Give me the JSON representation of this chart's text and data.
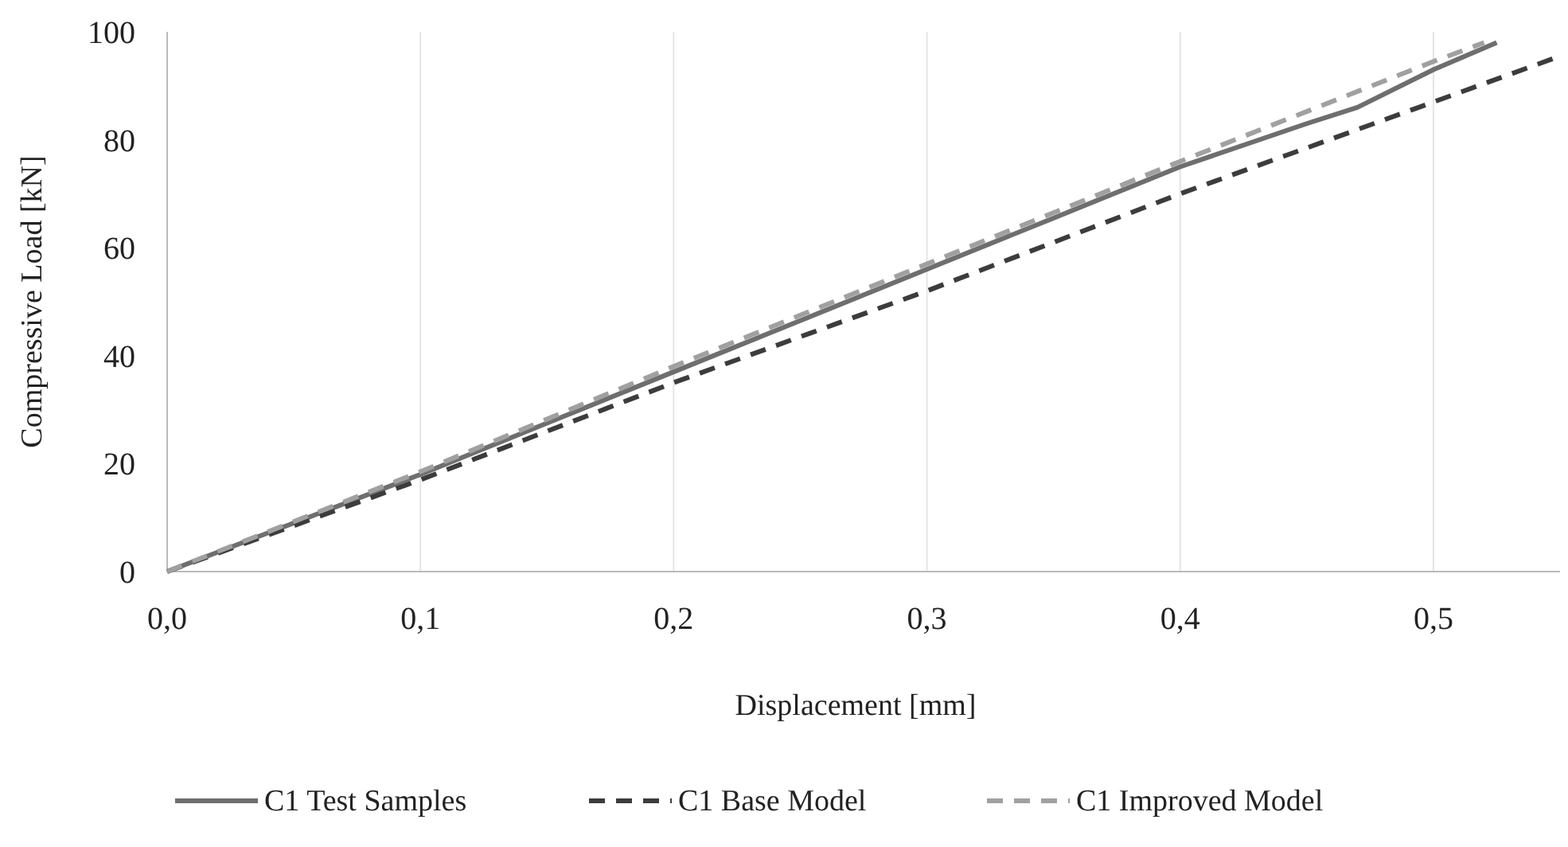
{
  "chart_data": {
    "type": "line",
    "xlabel": "Displacement [mm]",
    "ylabel": "Compressive Load [kN]",
    "xlim": [
      0,
      0.55
    ],
    "ylim": [
      0,
      100
    ],
    "xticks": [
      {
        "value": 0,
        "label": "0,0"
      },
      {
        "value": 0.1,
        "label": "0,1"
      },
      {
        "value": 0.2,
        "label": "0,2"
      },
      {
        "value": 0.3,
        "label": "0,3"
      },
      {
        "value": 0.4,
        "label": "0,4"
      },
      {
        "value": 0.5,
        "label": "0,5"
      }
    ],
    "yticks": [
      0,
      20,
      40,
      60,
      80,
      100
    ],
    "grid": "x",
    "legend": "bottom",
    "series": [
      {
        "name": "C1 Test Samples",
        "color": "#6e6e6e",
        "line_style": "solid",
        "x": [
          0,
          0.05,
          0.1,
          0.15,
          0.2,
          0.25,
          0.3,
          0.35,
          0.4,
          0.45,
          0.47,
          0.5,
          0.525
        ],
        "values": [
          0,
          9,
          18,
          27.5,
          37,
          46.5,
          56,
          65.5,
          75,
          83,
          86,
          93,
          98
        ]
      },
      {
        "name": "C1 Base Model",
        "color": "#3c3c3c",
        "line_style": "dashed",
        "x": [
          0,
          0.1,
          0.2,
          0.3,
          0.4,
          0.5,
          0.55
        ],
        "values": [
          0,
          17,
          35,
          52,
          70,
          87,
          95.5
        ]
      },
      {
        "name": "C1 Improved Model",
        "color": "#a0a0a0",
        "line_style": "dashed",
        "x": [
          0,
          0.1,
          0.2,
          0.3,
          0.4,
          0.5,
          0.52
        ],
        "values": [
          0,
          18.5,
          38,
          57,
          76,
          94.5,
          98
        ]
      }
    ]
  }
}
